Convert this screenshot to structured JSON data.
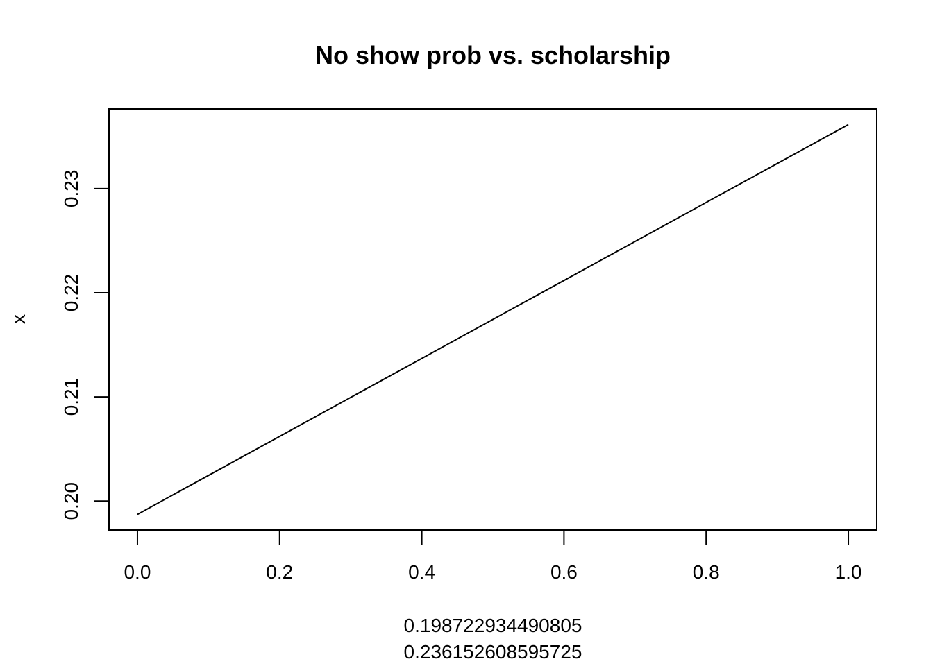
{
  "chart_data": {
    "type": "line",
    "title": "No show prob vs. scholarship",
    "xlabel_lines": [
      "0.198722934490805",
      "0.236152608595725"
    ],
    "ylabel": "x",
    "x": [
      0,
      1
    ],
    "y": [
      0.198722934490805,
      0.236152608595725
    ],
    "xlim": [
      -0.04,
      1.04
    ],
    "ylim": [
      0.19722,
      0.23765
    ],
    "x_ticks": [
      0.0,
      0.2,
      0.4,
      0.6,
      0.8,
      1.0
    ],
    "x_tick_labels": [
      "0.0",
      "0.2",
      "0.4",
      "0.6",
      "0.8",
      "1.0"
    ],
    "y_ticks": [
      0.2,
      0.21,
      0.22,
      0.23
    ],
    "y_tick_labels": [
      "0.20",
      "0.21",
      "0.22",
      "0.23"
    ],
    "grid": false,
    "line_color": "#000000"
  }
}
